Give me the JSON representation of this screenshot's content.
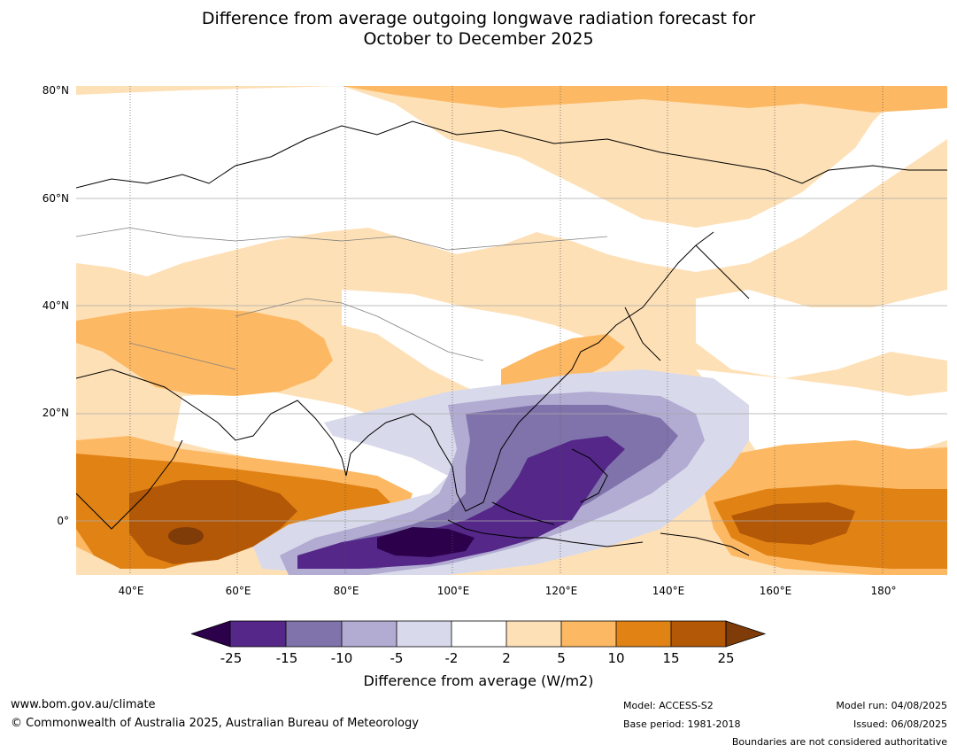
{
  "title_line1": "Difference from average outgoing longwave radiation forecast for",
  "title_line2": "October to December 2025",
  "lat_labels": [
    "80°N",
    "60°N",
    "40°N",
    "20°N",
    "0°"
  ],
  "lon_labels": [
    "40°E",
    "60°E",
    "80°E",
    "100°E",
    "120°E",
    "140°E",
    "160°E",
    "180°"
  ],
  "colorbar": {
    "ticks": [
      "-25",
      "-15",
      "-10",
      "-5",
      "-2",
      "2",
      "5",
      "10",
      "15",
      "25"
    ],
    "label": "Difference from average (W/m2)",
    "colors": {
      "below_-25": "#2d004b",
      "-25_-15": "#542788",
      "-15_-10": "#8073ac",
      "-10_-5": "#b2abd2",
      "-5_-2": "#d8daeb",
      "-2_2": "#ffffff",
      "2_5": "#fee0b6",
      "5_10": "#fdb863",
      "10_15": "#e08214",
      "15_25": "#b35806",
      "above_25": "#7f3b08"
    }
  },
  "footer": {
    "website": "www.bom.gov.au/climate",
    "copyright": "© Commonwealth of Australia 2025, Australian Bureau of Meteorology",
    "model": "Model: ACCESS-S2",
    "base_period": "Base period: 1981-2018",
    "model_run": "Model run: 04/08/2025",
    "issued": "Issued: 06/08/2025",
    "boundaries": "Boundaries are not considered authoritative"
  }
}
